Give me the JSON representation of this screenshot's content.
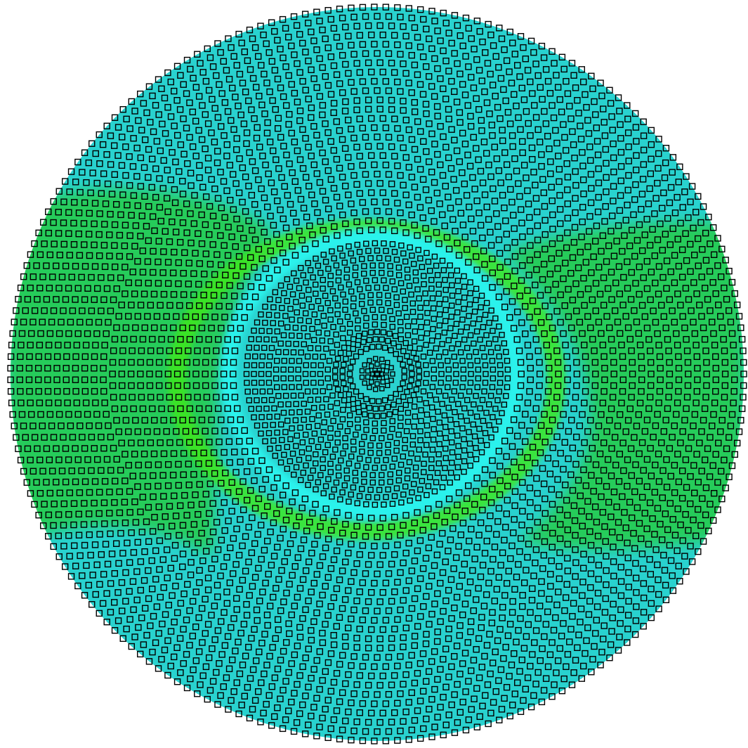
{
  "figure": {
    "kind": "polar-mesh-contour",
    "node_marker": "hollow-square",
    "colors": {
      "background": "#ffffff",
      "field_base": "#29d2cf",
      "field_mid": "#26cc5a",
      "field_high": "#3fe81a",
      "ring_highlight": "#2af2ec",
      "node_stroke": "#000000"
    }
  }
}
